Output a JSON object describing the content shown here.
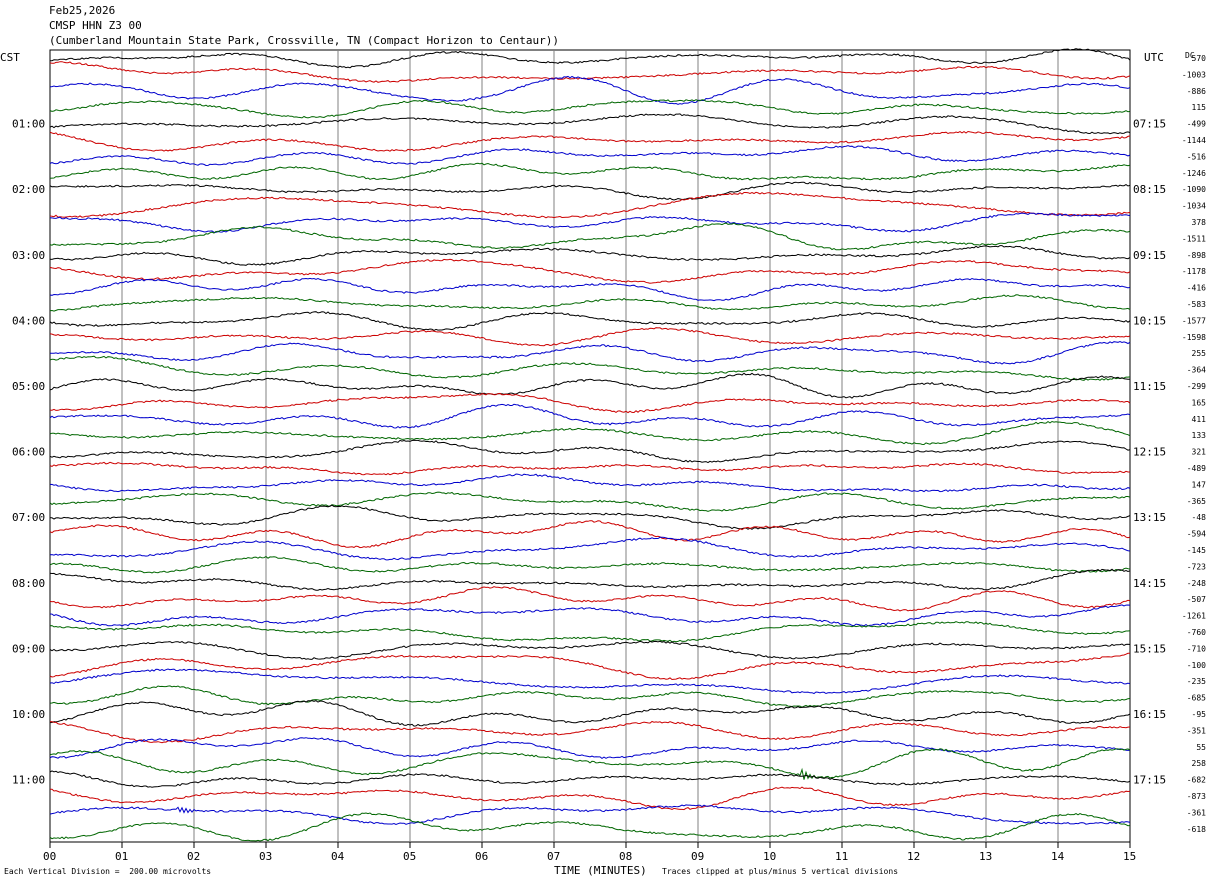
{
  "header": {
    "date": "Feb25,2026",
    "station": "CMSP HHN Z3 00",
    "location": "(Cumberland Mountain State Park, Crossville, TN (Compact Horizon to Centaur))"
  },
  "footer": {
    "division_note": "Each Vertical Division =  200.00 microvolts",
    "clip_note": "Traces clipped at plus/minus 5 vertical divisions"
  },
  "colors": {
    "trace": [
      "#000000",
      "#cc0000",
      "#0000cc",
      "#006600"
    ],
    "grid": "#808080"
  },
  "chart_data": {
    "type": "line",
    "title": "",
    "xlabel": "TIME (MINUTES)",
    "x_range": [
      0,
      15
    ],
    "x_ticks": [
      "00",
      "01",
      "02",
      "03",
      "04",
      "05",
      "06",
      "07",
      "08",
      "09",
      "10",
      "11",
      "12",
      "13",
      "14",
      "15"
    ],
    "left_axis_title": "CST",
    "right_axis_title": "UTC",
    "dc_title": "DC",
    "trace_minutes": 15,
    "trace_count": 48,
    "left_hour_labels": [
      "01:00",
      "02:00",
      "03:00",
      "04:00",
      "05:00",
      "06:00",
      "07:00",
      "08:00",
      "09:00",
      "10:00",
      "11:00"
    ],
    "right_hour_labels": [
      "07:15",
      "08:15",
      "09:15",
      "10:15",
      "11:15",
      "12:15",
      "13:15",
      "14:15",
      "15:15",
      "16:15",
      "17:15"
    ],
    "dc_offsets": [
      "570",
      "-1003",
      "-886",
      "115",
      "-499",
      "-1144",
      "-516",
      "-1246",
      "-1090",
      "-1034",
      "378",
      "-1511",
      "-898",
      "-1178",
      "-416",
      "-583",
      "-1577",
      "-1598",
      "255",
      "-364",
      "-299",
      "165",
      "411",
      "133",
      "321",
      "-489",
      "147",
      "-365",
      "-48",
      "-594",
      "-145",
      "-723",
      "-248",
      "-507",
      "-1261",
      "-760",
      "-710",
      "-100",
      "-235",
      "-685",
      "-95",
      "-351",
      "55",
      "258",
      "-682",
      "-873",
      "-361",
      "-618"
    ],
    "events": [
      {
        "trace": 46,
        "minute": 1.8,
        "amplitude": "small"
      },
      {
        "trace": 43,
        "minute": 10.45,
        "amplitude": "local"
      }
    ]
  }
}
